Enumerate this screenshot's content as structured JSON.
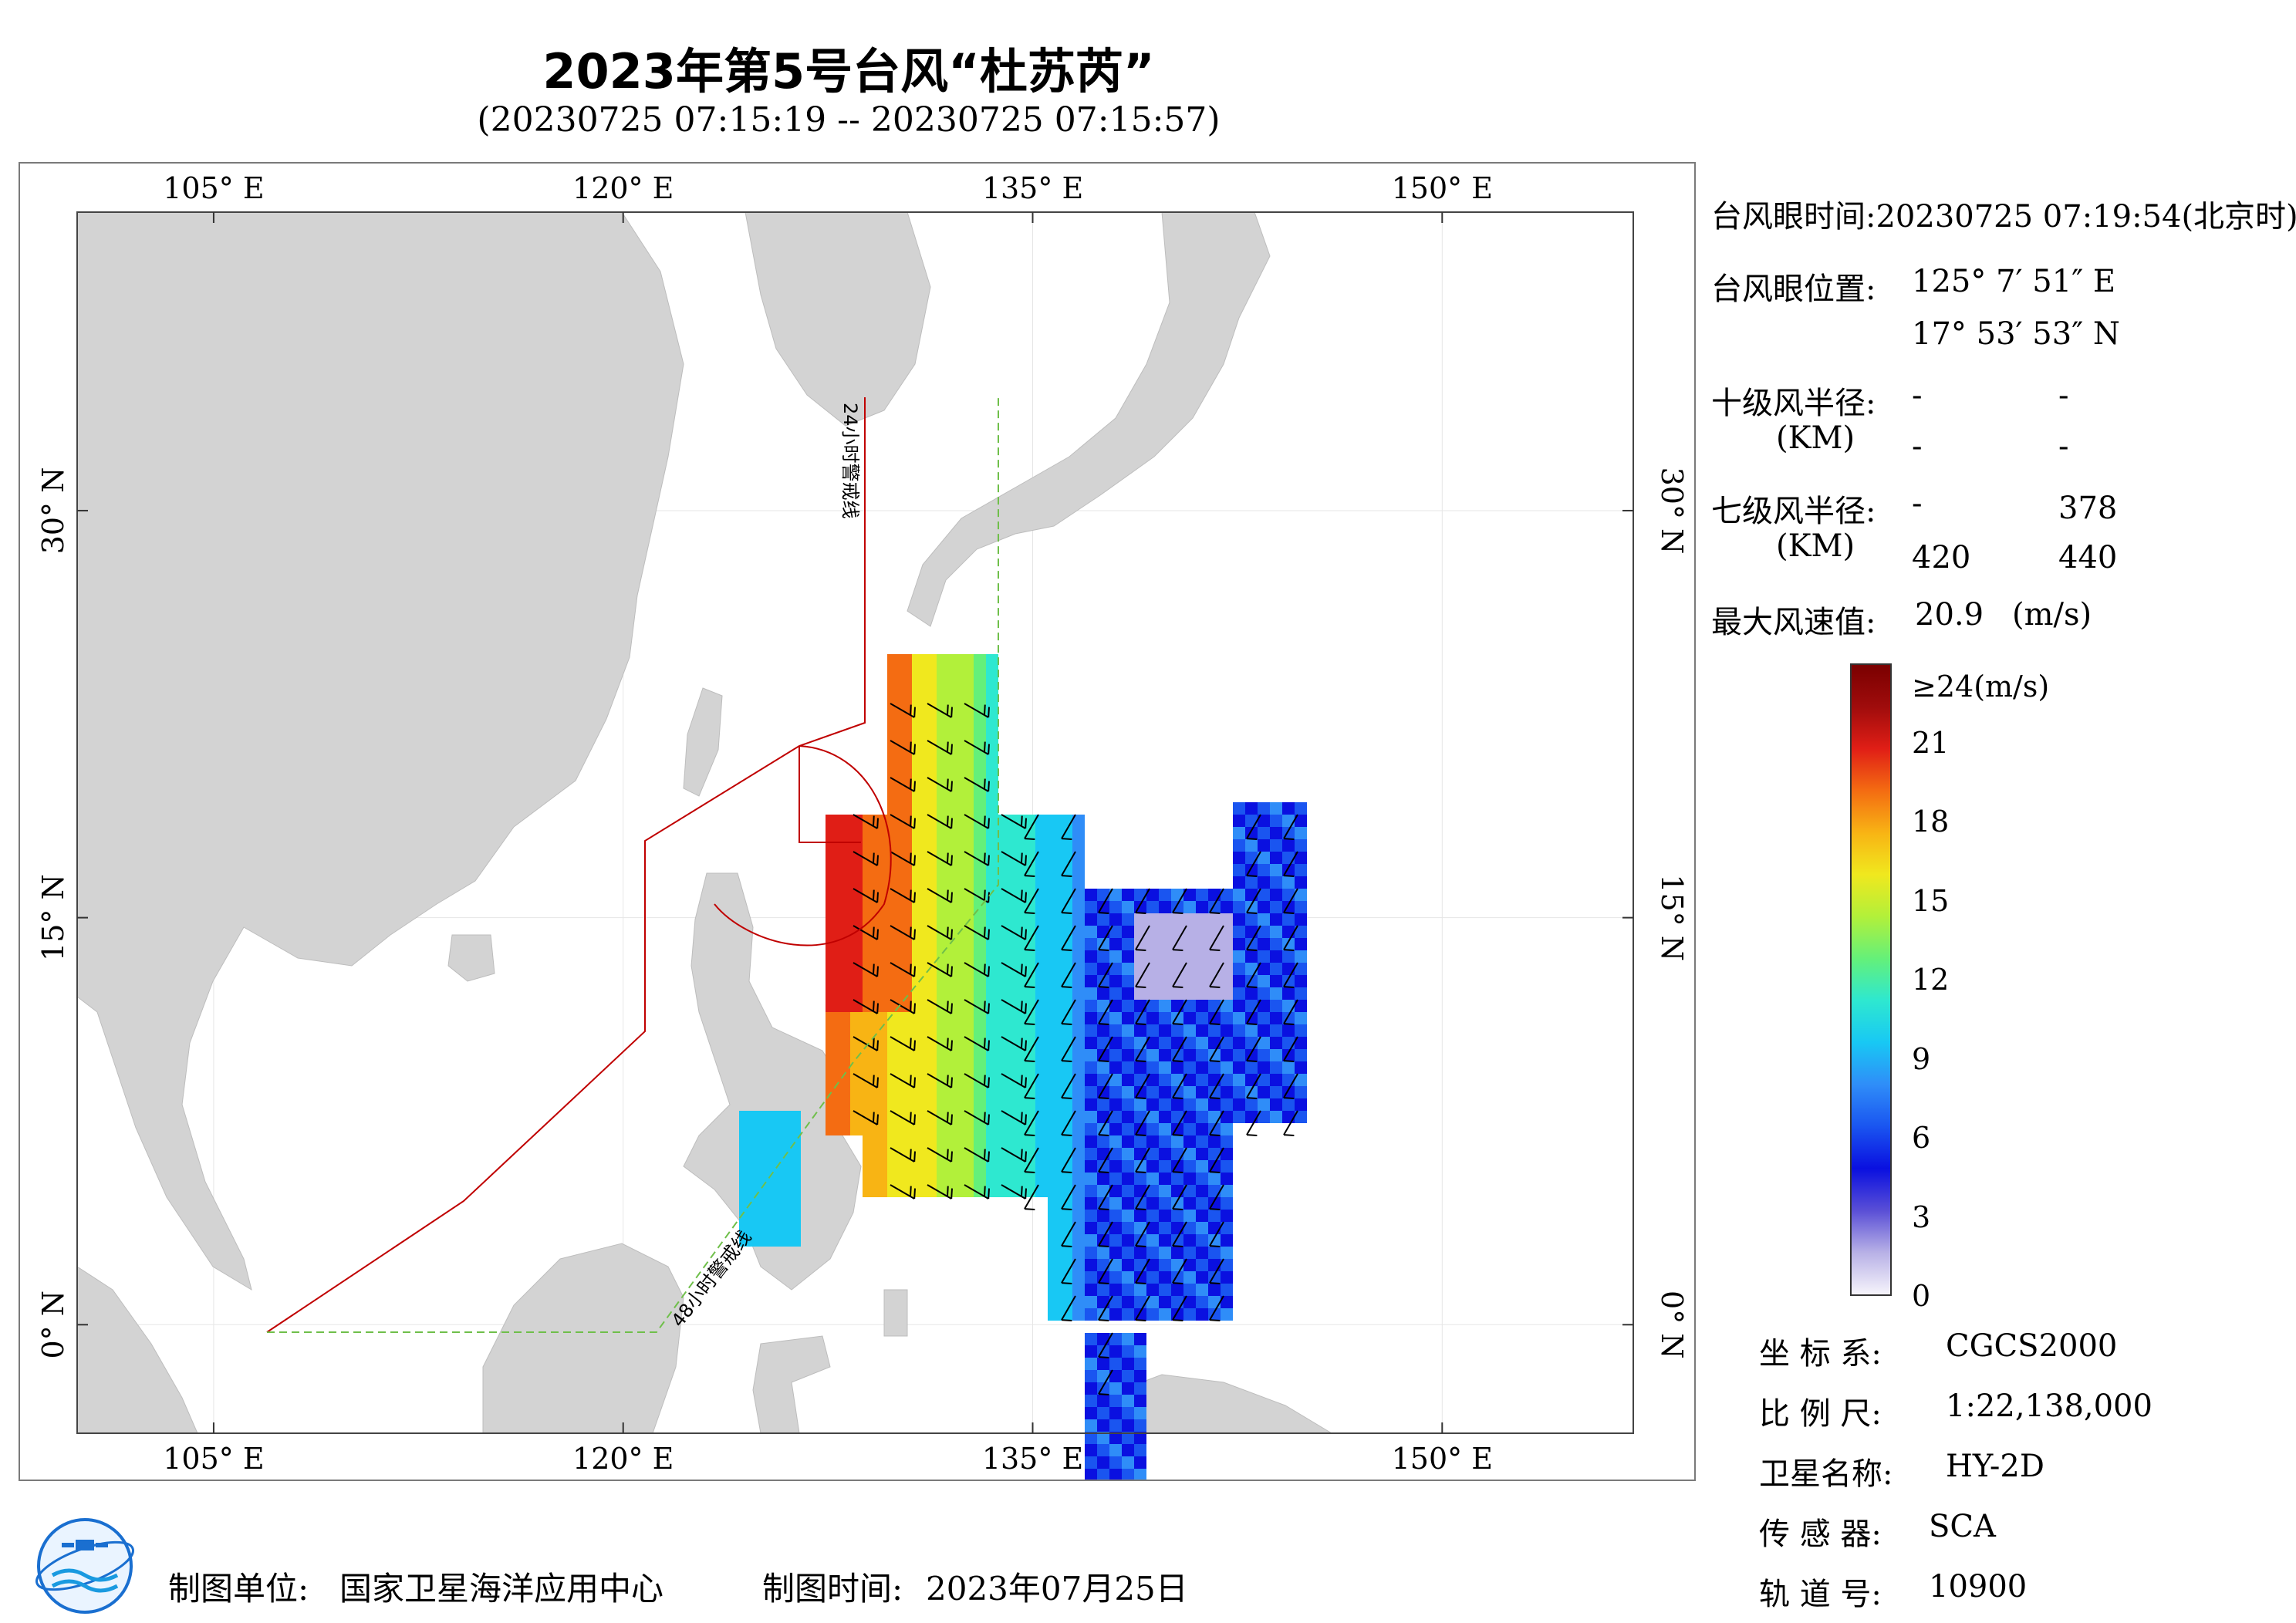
{
  "header": {
    "title": "2023年第5号台风“杜苏芮”",
    "subtitle": "(20230725 07:15:19 -- 20230725 07:15:57)"
  },
  "map": {
    "lon_range": [
      100,
      157
    ],
    "lat_range": [
      -4,
      41
    ],
    "lon_ticks": [
      "105° E",
      "120° E",
      "135° E",
      "150° E"
    ],
    "lat_ticks": [
      "0° N",
      "15° N",
      "30° N"
    ],
    "warning_line_24h": "24小时警戒线",
    "warning_line_48h": "48小时警戒线",
    "land_color": "#d3d3d3",
    "warning_line_color": "#c00000",
    "warning_line_48_color": "#6fbf4a"
  },
  "info_panel": {
    "eye_time_label": "台风眼时间:",
    "eye_time_value": "20230725 07:19:54(北京时)",
    "eye_pos_label": "台风眼位置:",
    "eye_lon": "125° 7′ 51″ E",
    "eye_lat": "17° 53′ 53″ N",
    "r10_label": "十级风半径:",
    "km_label": "(KM)",
    "r10_values": [
      "-",
      "-",
      "-",
      "-"
    ],
    "r7_label": "七级风半径:",
    "r7_values": [
      "-",
      "378",
      "420",
      "440"
    ],
    "max_wind_label": "最大风速值:",
    "max_wind_value": "20.9",
    "max_wind_unit": "(m/s)"
  },
  "colorbar": {
    "max_label": "≥24(m/s)",
    "tick_labels": [
      "21",
      "18",
      "15",
      "12",
      "9",
      "6",
      "3",
      "0"
    ],
    "stops": [
      "#f6f4fb",
      "#b7b0e6",
      "#5a4fd6",
      "#0a10e0",
      "#1a55f0",
      "#2f8df8",
      "#18c8f4",
      "#2ee8d0",
      "#64f07a",
      "#b2f03a",
      "#f0e81e",
      "#f8b414",
      "#f46c12",
      "#e01e16",
      "#a00c0c",
      "#7a0000"
    ]
  },
  "meta_panel": {
    "crs_label": "坐 标 系:",
    "crs_value": "CGCS2000",
    "scale_label": "比 例 尺:",
    "scale_value": "1:22,138,000",
    "satellite_label": "卫星名称:",
    "satellite_value": "HY-2D",
    "sensor_label": "传 感 器:",
    "sensor_value": "SCA",
    "orbit_label": "轨 道 号:",
    "orbit_value": "10900"
  },
  "footer": {
    "org_label": "制图单位:",
    "org_value": "国家卫星海洋应用中心",
    "date_label": "制图时间:",
    "date_value": "2023年07月25日"
  }
}
